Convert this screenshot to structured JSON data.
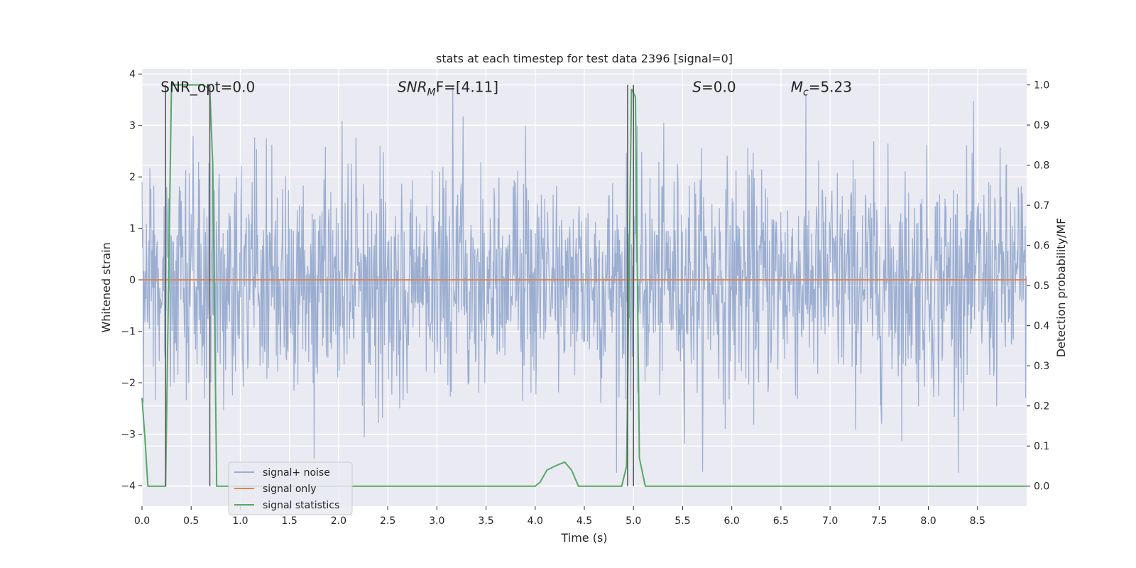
{
  "chart_data": {
    "type": "line",
    "title": "stats at each timestep for test data 2396 [signal=0]",
    "xlabel": "Time (s)",
    "ylabel": "Whitened strain",
    "ylabel_right": "Detection probability/MF",
    "xlim": [
      0,
      9
    ],
    "ylim": [
      -4.4,
      4.1
    ],
    "ylim_right": [
      -0.05,
      1.04
    ],
    "x_ticks": [
      "0.0",
      "0.5",
      "1.0",
      "1.5",
      "2.0",
      "2.5",
      "3.0",
      "3.5",
      "4.0",
      "4.5",
      "5.0",
      "5.5",
      "6.0",
      "6.5",
      "7.0",
      "7.5",
      "8.0",
      "8.5"
    ],
    "y_ticks": [
      "−4",
      "−3",
      "−2",
      "−1",
      "0",
      "1",
      "2",
      "3",
      "4"
    ],
    "y_ticks_right": [
      "0.0",
      "0.1",
      "0.2",
      "0.3",
      "0.4",
      "0.5",
      "0.6",
      "0.7",
      "0.8",
      "0.9",
      "1.0"
    ],
    "grid": true,
    "legend_position": "lower-left",
    "annotations": [
      {
        "id": "snr-opt",
        "x": 0.19,
        "y": 3.75,
        "text": "SNR_opt=0.0"
      },
      {
        "id": "snr-mf",
        "x": 2.6,
        "y": 3.75,
        "text": "SNR_MF=[4.11]",
        "base": "SNR",
        "sub": "M",
        "tail": "F=[4.11]"
      },
      {
        "id": "s",
        "x": 5.6,
        "y": 3.75,
        "text": "S=0.0",
        "base": "S",
        "tail": "=0.0"
      },
      {
        "id": "mc",
        "x": 6.6,
        "y": 3.75,
        "text": "M_c=5.23",
        "base": "M",
        "sub": "c",
        "tail": "=5.23"
      }
    ],
    "vlines": [
      {
        "x": 0.24,
        "y_top": 1.0
      },
      {
        "x": 0.69,
        "y_top": 1.0
      },
      {
        "x": 4.94,
        "y_top": 1.0
      },
      {
        "x": 5.0,
        "y_top": 1.0
      }
    ],
    "series": [
      {
        "name": "signal+ noise",
        "color": "#4c72b0",
        "alpha": 0.5,
        "axis": "left",
        "kind": "noise",
        "std": 1.1,
        "max_abs": 3.75,
        "samples": 1800,
        "x_start": 0.0,
        "x_end": 9.0
      },
      {
        "name": "signal only",
        "color": "#dd8452",
        "axis": "left",
        "kind": "line",
        "points": [
          [
            0.0,
            0.0
          ],
          [
            9.0,
            0.0
          ]
        ]
      },
      {
        "name": "signal statistics",
        "color": "#55a868",
        "axis": "right",
        "kind": "line",
        "points": [
          [
            0.0,
            0.22
          ],
          [
            0.03,
            0.12
          ],
          [
            0.06,
            0.0
          ],
          [
            0.24,
            0.0
          ],
          [
            0.3,
            1.0
          ],
          [
            0.62,
            1.0
          ],
          [
            0.69,
            0.99
          ],
          [
            0.72,
            0.8
          ],
          [
            0.76,
            0.0
          ],
          [
            4.0,
            0.0
          ],
          [
            4.05,
            0.01
          ],
          [
            4.12,
            0.04
          ],
          [
            4.2,
            0.05
          ],
          [
            4.3,
            0.06
          ],
          [
            4.37,
            0.04
          ],
          [
            4.44,
            0.0
          ],
          [
            4.88,
            0.0
          ],
          [
            4.93,
            0.05
          ],
          [
            4.98,
            0.99
          ],
          [
            5.02,
            0.97
          ],
          [
            5.06,
            0.07
          ],
          [
            5.12,
            0.0
          ],
          [
            9.0,
            0.0
          ]
        ]
      }
    ]
  }
}
